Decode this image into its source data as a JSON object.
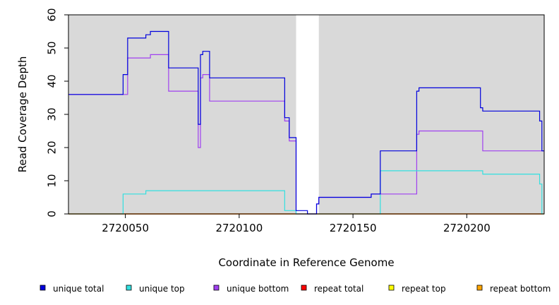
{
  "chart_data": {
    "type": "line",
    "title": "",
    "xlabel": "Coordinate in Reference Genome",
    "ylabel": "Read Coverage Depth",
    "xlim": [
      2720025,
      2720234
    ],
    "ylim": [
      0,
      60
    ],
    "x_ticks": [
      2720050,
      2720100,
      2720150,
      2720200
    ],
    "x_tick_labels": [
      "2720050",
      "2720100",
      "2720150",
      "2720200"
    ],
    "y_ticks": [
      0,
      10,
      20,
      30,
      40,
      50,
      60
    ],
    "y_tick_labels": [
      "0",
      "10",
      "20",
      "30",
      "40",
      "50",
      "60"
    ],
    "grid": false,
    "background_color": "#d9d9d9",
    "gap_regions": [
      [
        2720125,
        2720135
      ]
    ],
    "legend_position": "bottom",
    "series": [
      {
        "name": "unique total",
        "color": "#0000dd",
        "steps": [
          [
            2720025,
            36
          ],
          [
            2720049,
            42
          ],
          [
            2720051,
            53
          ],
          [
            2720059,
            54
          ],
          [
            2720061,
            55
          ],
          [
            2720069,
            44
          ],
          [
            2720082,
            27
          ],
          [
            2720083,
            48
          ],
          [
            2720084,
            49
          ],
          [
            2720087,
            41
          ],
          [
            2720120,
            29
          ],
          [
            2720122,
            23
          ],
          [
            2720125,
            1
          ],
          [
            2720130,
            0
          ],
          [
            2720134,
            3
          ],
          [
            2720135,
            5
          ],
          [
            2720158,
            6
          ],
          [
            2720162,
            19
          ],
          [
            2720178,
            37
          ],
          [
            2720179,
            38
          ],
          [
            2720206,
            32
          ],
          [
            2720207,
            31
          ],
          [
            2720232,
            28
          ],
          [
            2720233,
            19
          ],
          [
            2720234,
            19
          ]
        ]
      },
      {
        "name": "unique top",
        "color": "#33e0e0",
        "steps": [
          [
            2720025,
            0
          ],
          [
            2720049,
            6
          ],
          [
            2720059,
            7
          ],
          [
            2720120,
            1
          ],
          [
            2720125,
            0
          ],
          [
            2720162,
            13
          ],
          [
            2720207,
            12
          ],
          [
            2720232,
            9
          ],
          [
            2720233,
            0
          ],
          [
            2720234,
            0
          ]
        ]
      },
      {
        "name": "unique bottom",
        "color": "#a040f0",
        "steps": [
          [
            2720025,
            36
          ],
          [
            2720049,
            36
          ],
          [
            2720051,
            47
          ],
          [
            2720061,
            48
          ],
          [
            2720069,
            37
          ],
          [
            2720082,
            20
          ],
          [
            2720083,
            41
          ],
          [
            2720084,
            42
          ],
          [
            2720087,
            34
          ],
          [
            2720120,
            28
          ],
          [
            2720122,
            22
          ],
          [
            2720125,
            0
          ],
          [
            2720134,
            3
          ],
          [
            2720135,
            5
          ],
          [
            2720158,
            6
          ],
          [
            2720178,
            24
          ],
          [
            2720179,
            25
          ],
          [
            2720207,
            19
          ],
          [
            2720234,
            19
          ]
        ]
      },
      {
        "name": "repeat total",
        "color": "#ff0000",
        "steps": [
          [
            2720025,
            0
          ],
          [
            2720234,
            0
          ]
        ]
      },
      {
        "name": "repeat top",
        "color": "#ffff00",
        "steps": [
          [
            2720025,
            0
          ],
          [
            2720234,
            0
          ]
        ]
      },
      {
        "name": "repeat bottom",
        "color": "#ffa500",
        "steps": [
          [
            2720025,
            0
          ],
          [
            2720234,
            0
          ]
        ]
      }
    ]
  }
}
